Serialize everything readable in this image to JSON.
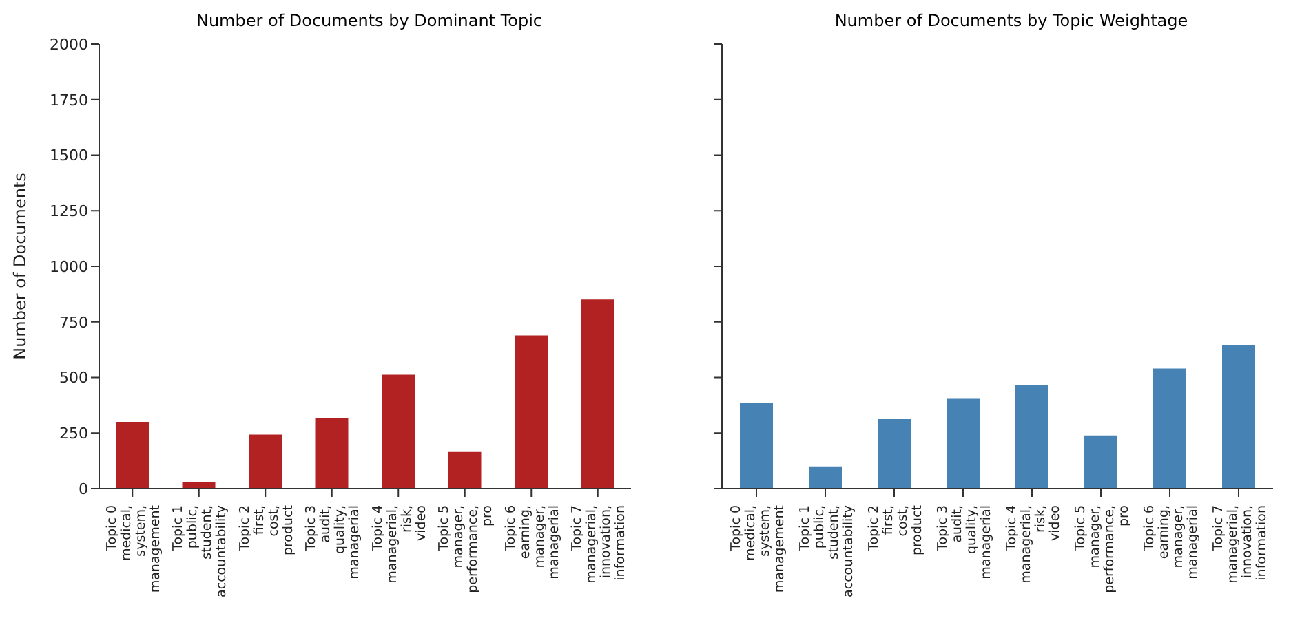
{
  "chart_data": [
    {
      "type": "bar",
      "title": "Number of Documents by Dominant Topic",
      "ylabel": "Number of Documents",
      "categories": [
        "Topic 0\nmedical,\nsystem,\nmanagement",
        "Topic 1\npublic,\nstudent,\naccountability",
        "Topic 2\nfirst,\ncost,\nproduct",
        "Topic 3\naudit,\nquality,\nmanagerial",
        "Topic 4\nmanagerial,\nrisk,\nvideo",
        "Topic 5\nmanager,\nperformance,\npro",
        "Topic 6\nearning,\nmanager,\nmanagerial",
        "Topic 7\nmanagerial,\ninnovation,\ninformation"
      ],
      "values": [
        300,
        28,
        243,
        317,
        512,
        165,
        689,
        851
      ],
      "color": "#b22222",
      "ylim": [
        0,
        2000
      ],
      "yticks": [
        0,
        250,
        500,
        750,
        1000,
        1250,
        1500,
        1750,
        2000
      ],
      "grid": false
    },
    {
      "type": "bar",
      "title": "Number of Documents by Topic Weightage",
      "categories": [
        "Topic 0\nmedical,\nsystem,\nmanagement",
        "Topic 1\npublic,\nstudent,\naccountability",
        "Topic 2\nfirst,\ncost,\nproduct",
        "Topic 3\naudit,\nquality,\nmanagerial",
        "Topic 4\nmanagerial,\nrisk,\nvideo",
        "Topic 5\nmanager,\nperformance,\npro",
        "Topic 6\nearning,\nmanager,\nmanagerial",
        "Topic 7\nmanagerial,\ninnovation,\ninformation"
      ],
      "values": [
        386,
        100,
        313,
        404,
        466,
        239,
        540,
        646
      ],
      "color": "#4682b4",
      "ylim": [
        0,
        2000
      ],
      "yticks": [
        0,
        250,
        500,
        750,
        1000,
        1250,
        1500,
        1750,
        2000
      ],
      "grid": false,
      "tick_labels": "x"
    }
  ]
}
